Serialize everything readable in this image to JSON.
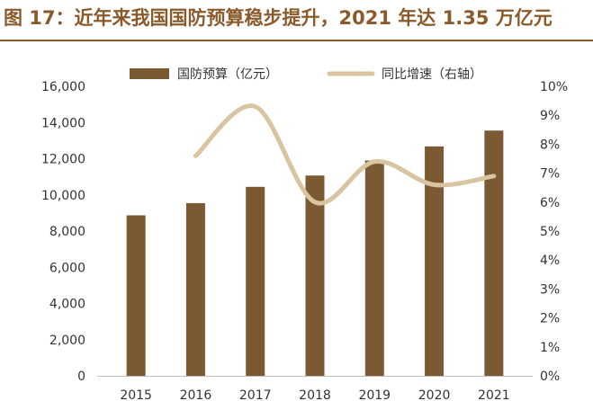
{
  "title": "图 17：近年来我国国防预算稳步提升，2021 年达 1.35 万亿元",
  "colors": {
    "bar": "#7B5A33",
    "line": "#D8C4A0",
    "title": "#8B5A2B",
    "axis": "#BFBFBF"
  },
  "chart_data": {
    "type": "bar+line",
    "categories": [
      "2015",
      "2016",
      "2017",
      "2018",
      "2019",
      "2020",
      "2021"
    ],
    "series": [
      {
        "name": "国防预算（亿元）",
        "type": "bar",
        "axis": "left",
        "values": [
          8870,
          9544,
          10444,
          11070,
          11899,
          12680,
          13553
        ]
      },
      {
        "name": "同比增速（右轴）",
        "type": "line",
        "axis": "right",
        "values": [
          null,
          7.6,
          9.3,
          6.0,
          7.4,
          6.6,
          6.9
        ]
      }
    ],
    "y_left": {
      "ticks": [
        "0",
        "2,000",
        "4,000",
        "6,000",
        "8,000",
        "10,000",
        "12,000",
        "14,000",
        "16,000"
      ],
      "ylim": [
        0,
        16000
      ]
    },
    "y_right": {
      "ticks": [
        "0%",
        "1%",
        "2%",
        "3%",
        "4%",
        "5%",
        "6%",
        "7%",
        "8%",
        "9%",
        "10%"
      ],
      "ylim": [
        0,
        10
      ]
    },
    "legend_position": "top",
    "grid": false
  }
}
